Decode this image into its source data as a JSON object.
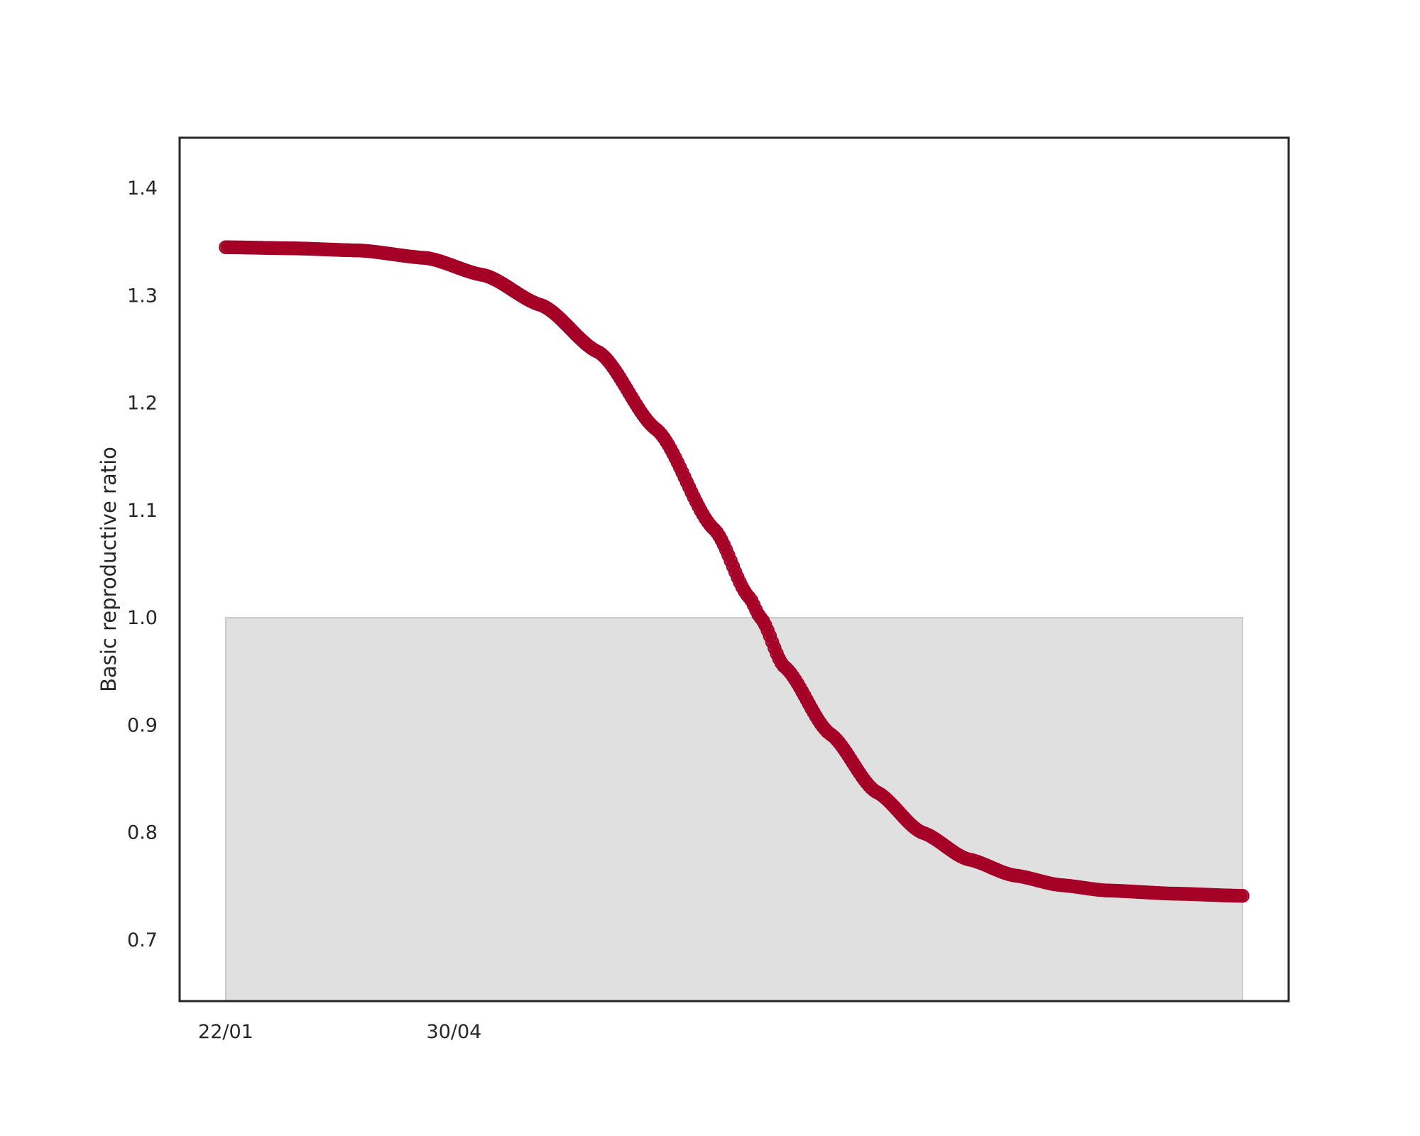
{
  "chart_data": {
    "type": "scatter",
    "title": "",
    "xlabel": "",
    "ylabel": "Basic reproductive ratio",
    "x_tick_labels": [
      "22/01",
      "30/04"
    ],
    "y_ticks": [
      0.7,
      0.8,
      0.9,
      1.0,
      1.1,
      1.2,
      1.3,
      1.4
    ],
    "y_tick_labels": [
      "0.7",
      "0.8",
      "0.9",
      "1.0",
      "1.1",
      "1.2",
      "1.3",
      "1.4"
    ],
    "xlim": [
      "2020-01-02",
      "2021-04-27"
    ],
    "ylim": [
      0.643,
      1.447
    ],
    "grid": false,
    "legend": "none",
    "shaded_region": {
      "x_start": "2020-01-22",
      "x_end": "2021-04-07",
      "y_min": 0.643,
      "y_max": 1.0,
      "color": "#e0e0e0"
    },
    "series": [
      {
        "color": "#a50026",
        "marker": "circle",
        "x_start": "2020-01-22",
        "x_end": "2021-04-07",
        "points": [
          {
            "x": "2020-01-22",
            "y": 1.345
          },
          {
            "x": "2020-02-20",
            "y": 1.344
          },
          {
            "x": "2020-03-20",
            "y": 1.342
          },
          {
            "x": "2020-04-18",
            "y": 1.335
          },
          {
            "x": "2020-05-13",
            "y": 1.319
          },
          {
            "x": "2020-06-07",
            "y": 1.291
          },
          {
            "x": "2020-07-02",
            "y": 1.247
          },
          {
            "x": "2020-07-27",
            "y": 1.175
          },
          {
            "x": "2020-08-21",
            "y": 1.082
          },
          {
            "x": "2020-09-05",
            "y": 1.019
          },
          {
            "x": "2020-09-10",
            "y": 1.0
          },
          {
            "x": "2020-09-20",
            "y": 0.955
          },
          {
            "x": "2020-10-10",
            "y": 0.892
          },
          {
            "x": "2020-10-30",
            "y": 0.838
          },
          {
            "x": "2020-11-19",
            "y": 0.8
          },
          {
            "x": "2020-12-09",
            "y": 0.775
          },
          {
            "x": "2020-12-29",
            "y": 0.76
          },
          {
            "x": "2021-01-18",
            "y": 0.751
          },
          {
            "x": "2021-02-07",
            "y": 0.746
          },
          {
            "x": "2021-03-09",
            "y": 0.743
          },
          {
            "x": "2021-04-07",
            "y": 0.741
          }
        ]
      }
    ]
  }
}
